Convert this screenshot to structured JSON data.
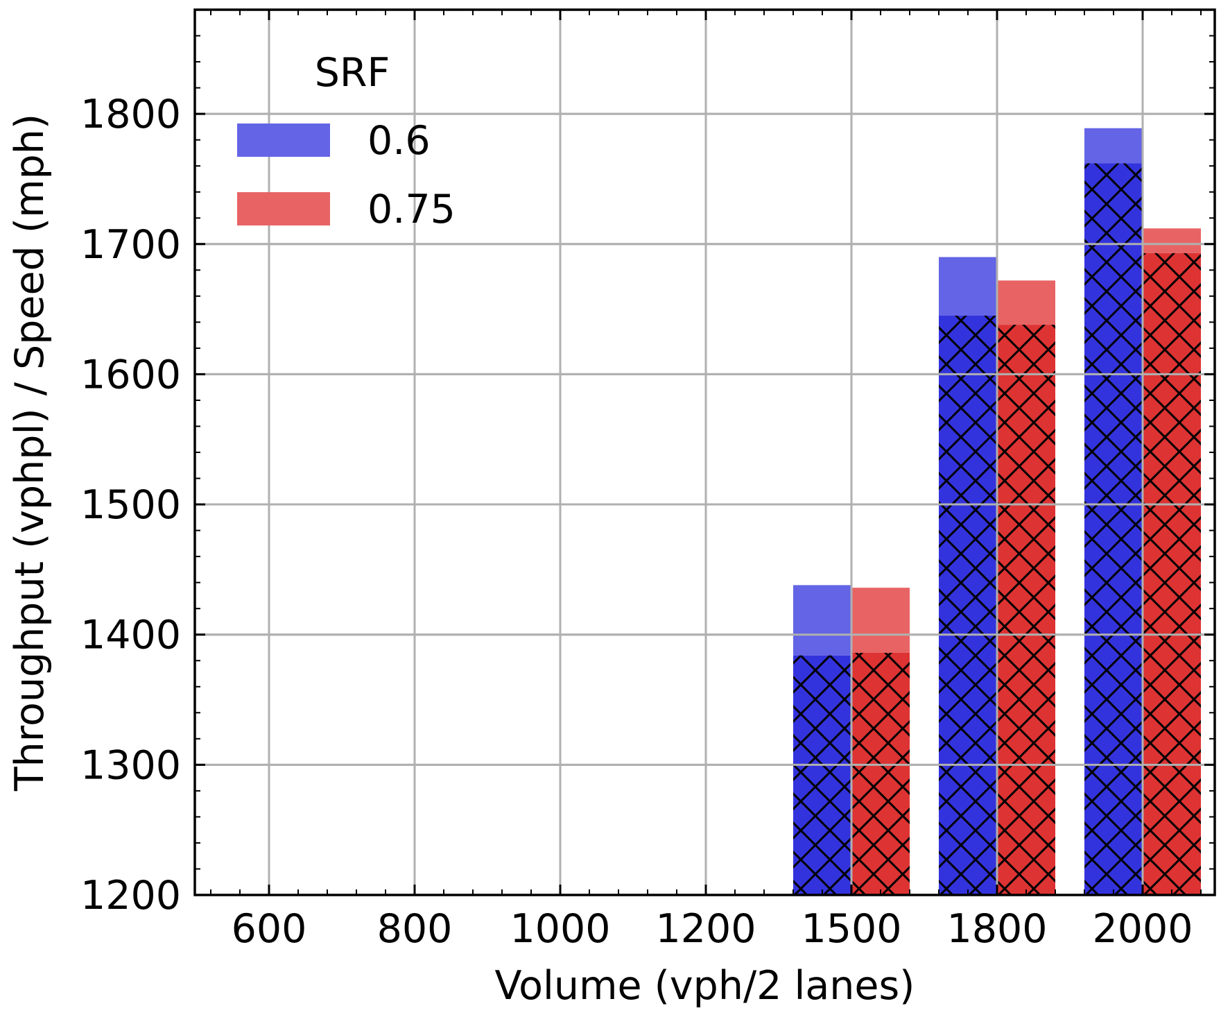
{
  "chart_data": {
    "type": "bar",
    "title": "",
    "xlabel": "Volume (vph/2 lanes)",
    "ylabel": "Throughput (vphpl) / Speed (mph)",
    "ylim": [
      1200,
      1880
    ],
    "x_tick_labels": [
      "600",
      "800",
      "1000",
      "1200",
      "1500",
      "1800",
      "2000"
    ],
    "y_ticks": [
      1200,
      1300,
      1400,
      1500,
      1600,
      1700,
      1800
    ],
    "grid": true,
    "legend": {
      "title": "SRF",
      "position": "top-left"
    },
    "categories": [
      "600",
      "800",
      "1000",
      "1200",
      "1500",
      "1800",
      "2000"
    ],
    "series": [
      {
        "name": "0.6",
        "color": "#3333dd",
        "light_color": "#6464e6",
        "total": [
          null,
          null,
          null,
          null,
          1438,
          1690,
          1789
        ],
        "hatched": [
          null,
          null,
          null,
          null,
          1384,
          1645,
          1762
        ]
      },
      {
        "name": "0.75",
        "color": "#dd3333",
        "light_color": "#e86464",
        "total": [
          null,
          null,
          null,
          null,
          1436,
          1672,
          1712
        ],
        "hatched": [
          null,
          null,
          null,
          null,
          1386,
          1638,
          1693
        ]
      }
    ]
  }
}
